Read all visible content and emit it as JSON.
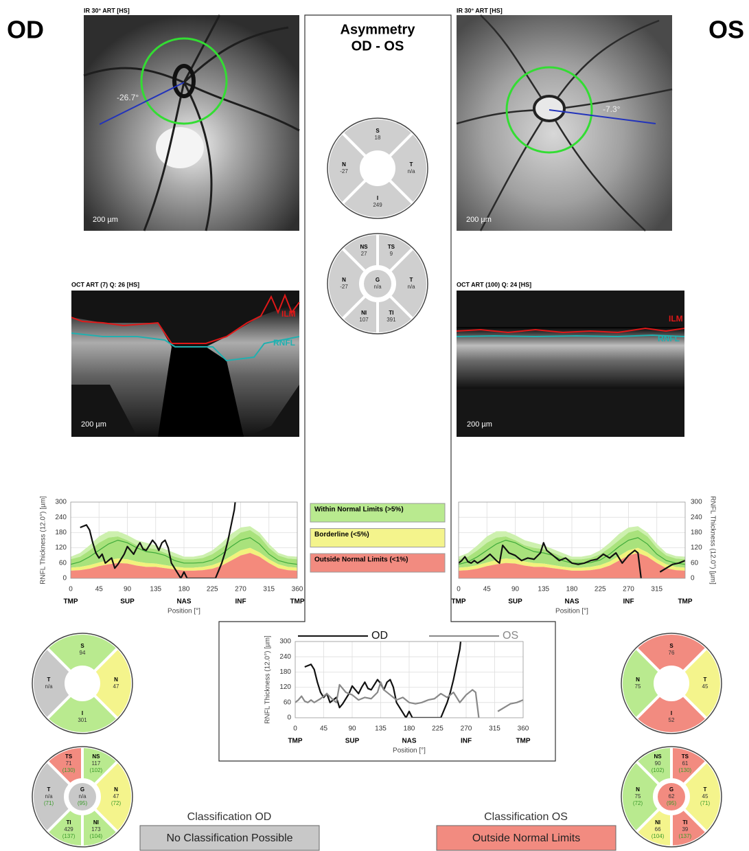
{
  "od_title": "OD",
  "os_title": "OS",
  "asymmetry": {
    "title": "Asymmetry",
    "subtitle": "OD - OS",
    "sectors4": [
      {
        "label": "S",
        "value": 18,
        "color": "#cfcfcf"
      },
      {
        "label": "T",
        "value": "n/a",
        "color": "#cfcfcf"
      },
      {
        "label": "I",
        "value": 249,
        "color": "#cfcfcf"
      },
      {
        "label": "N",
        "value": -27,
        "color": "#cfcfcf"
      }
    ],
    "sectors6": [
      {
        "label": "NS",
        "value": 27,
        "color": "#cfcfcf"
      },
      {
        "label": "TS",
        "value": 9,
        "color": "#cfcfcf"
      },
      {
        "label": "T",
        "value": "n/a",
        "color": "#cfcfcf"
      },
      {
        "label": "TI",
        "value": 391,
        "color": "#cfcfcf"
      },
      {
        "label": "NI",
        "value": 107,
        "color": "#cfcfcf"
      },
      {
        "label": "N",
        "value": -27,
        "color": "#cfcfcf"
      },
      {
        "label": "G",
        "value": "n/a",
        "color": "#cfcfcf"
      }
    ]
  },
  "od": {
    "ir": {
      "label": "IR 30° ART [HS]",
      "angle": "-26.7°",
      "scale": "200 µm"
    },
    "oct": {
      "label": "OCT ART (7) Q: 26 [HS]",
      "scale": "200 µm",
      "ilm": "ILM",
      "rnfl": "RNFL"
    },
    "sectors4": [
      {
        "label": "S",
        "value": 94,
        "color": "#b9ea8f"
      },
      {
        "label": "N",
        "value": 47,
        "color": "#f4f48c"
      },
      {
        "label": "I",
        "value": 301,
        "color": "#b9ea8f"
      },
      {
        "label": "T",
        "value": "n/a",
        "color": "#c8c8c8"
      }
    ],
    "sectors6": [
      {
        "label": "TS",
        "value": 71,
        "normal": "(130)",
        "color": "#f28b80"
      },
      {
        "label": "NS",
        "value": 117,
        "normal": "(102)",
        "color": "#b9ea8f"
      },
      {
        "label": "N",
        "value": 47,
        "normal": "(72)",
        "color": "#f4f48c"
      },
      {
        "label": "NI",
        "value": 173,
        "normal": "(104)",
        "color": "#b9ea8f"
      },
      {
        "label": "TI",
        "value": 429,
        "normal": "(137)",
        "color": "#b9ea8f"
      },
      {
        "label": "T",
        "value": "n/a",
        "normal": "(71)",
        "color": "#c8c8c8"
      },
      {
        "label": "G",
        "value": "n/a",
        "normal": "(95)",
        "color": "#c8c8c8"
      }
    ],
    "classification": {
      "title": "Classification OD",
      "result": "No Classification Possible",
      "color": "#c8c8c8"
    }
  },
  "os": {
    "ir": {
      "label": "IR 30° ART [HS]",
      "angle": "-7.3°",
      "scale": "200 µm"
    },
    "oct": {
      "label": "OCT ART (100) Q: 24 [HS]",
      "scale": "200 µm",
      "ilm": "ILM",
      "rnfl": "RNFL"
    },
    "sectors4": [
      {
        "label": "S",
        "value": 76,
        "color": "#f28b80"
      },
      {
        "label": "T",
        "value": 45,
        "color": "#f4f48c"
      },
      {
        "label": "I",
        "value": 52,
        "color": "#f28b80"
      },
      {
        "label": "N",
        "value": 75,
        "color": "#b9ea8f"
      }
    ],
    "sectors6": [
      {
        "label": "NS",
        "value": 90,
        "normal": "(102)",
        "color": "#b9ea8f"
      },
      {
        "label": "TS",
        "value": 61,
        "normal": "(130)",
        "color": "#f28b80"
      },
      {
        "label": "T",
        "value": 45,
        "normal": "(71)",
        "color": "#f4f48c"
      },
      {
        "label": "TI",
        "value": 39,
        "normal": "(137)",
        "color": "#f28b80"
      },
      {
        "label": "NI",
        "value": 66,
        "normal": "(104)",
        "color": "#f4f48c"
      },
      {
        "label": "N",
        "value": 75,
        "normal": "(72)",
        "color": "#b9ea8f"
      },
      {
        "label": "G",
        "value": 62,
        "normal": "(95)",
        "color": "#f28b80"
      }
    ],
    "classification": {
      "title": "Classification OS",
      "result": "Outside Normal Limits",
      "color": "#f28b80"
    }
  },
  "legend": [
    {
      "label": "Within Normal Limits (>5%)",
      "color": "#b9ea8f"
    },
    {
      "label": "Borderline (<5%)",
      "color": "#f4f48c"
    },
    {
      "label": "Outside Normal Limits (<1%)",
      "color": "#f28b80"
    }
  ],
  "charts": [
    {
      "type": "line",
      "ylabel": "RNFL Thickness (12.0°) [µm]",
      "xlabel": "Position [°]",
      "xlim": [
        0,
        360
      ],
      "ylim": [
        0,
        300
      ],
      "xticks": [
        0,
        45,
        90,
        135,
        180,
        225,
        270,
        315,
        360
      ],
      "yticks": [
        0,
        60,
        120,
        180,
        240,
        300
      ],
      "regions": [
        {
          "value": 0,
          "label": "TMP"
        },
        {
          "value": 90,
          "label": "SUP"
        },
        {
          "value": 180,
          "label": "NAS"
        },
        {
          "value": 270,
          "label": "INF"
        },
        {
          "value": 360,
          "label": "TMP"
        }
      ],
      "norm": {
        "colors": {
          "p1": "#f48a7c",
          "p5": "#f2f27c",
          "p95": "#a9e27c",
          "p99": "#cdf0ae",
          "mean": "#3faa3a"
        },
        "x": [
          0,
          15,
          30,
          45,
          60,
          75,
          90,
          105,
          120,
          135,
          150,
          165,
          180,
          195,
          210,
          225,
          240,
          255,
          270,
          285,
          300,
          315,
          330,
          345,
          360
        ],
        "p1": [
          30,
          32,
          38,
          48,
          55,
          60,
          58,
          50,
          45,
          45,
          40,
          35,
          30,
          30,
          32,
          38,
          50,
          70,
          90,
          100,
          85,
          60,
          40,
          32,
          30
        ],
        "p5": [
          42,
          45,
          52,
          62,
          72,
          78,
          75,
          66,
          60,
          58,
          52,
          46,
          42,
          42,
          45,
          52,
          66,
          88,
          110,
          120,
          102,
          75,
          55,
          45,
          42
        ],
        "p95": [
          75,
          85,
          110,
          140,
          160,
          165,
          150,
          130,
          120,
          115,
          100,
          85,
          75,
          75,
          80,
          95,
          120,
          150,
          180,
          190,
          165,
          120,
          90,
          78,
          75
        ],
        "p99": [
          85,
          100,
          130,
          165,
          185,
          185,
          170,
          150,
          140,
          130,
          115,
          100,
          85,
          85,
          92,
          110,
          140,
          175,
          200,
          205,
          180,
          135,
          100,
          88,
          85
        ],
        "mean": [
          55,
          65,
          85,
          110,
          135,
          150,
          140,
          120,
          105,
          100,
          90,
          70,
          60,
          60,
          62,
          72,
          95,
          125,
          150,
          160,
          135,
          95,
          70,
          60,
          55
        ]
      },
      "series": [
        {
          "color": "#111111",
          "x": [
            15,
            20,
            25,
            30,
            35,
            40,
            45,
            50,
            55,
            60,
            65,
            70,
            75,
            80,
            85,
            90,
            95,
            100,
            105,
            110,
            115,
            120,
            125,
            130,
            135,
            140,
            145,
            150,
            155,
            160,
            165,
            170,
            175,
            180,
            185,
            190,
            200,
            210,
            220,
            225,
            230,
            235,
            240,
            245,
            250,
            255,
            260,
            264
          ],
          "values": [
            200,
            205,
            210,
            190,
            140,
            100,
            80,
            95,
            60,
            70,
            80,
            40,
            55,
            75,
            95,
            125,
            110,
            95,
            120,
            140,
            115,
            110,
            130,
            150,
            135,
            110,
            140,
            150,
            120,
            60,
            40,
            20,
            0,
            25,
            0,
            0,
            0,
            0,
            0,
            0,
            0,
            30,
            60,
            100,
            150,
            210,
            270,
            360
          ]
        }
      ]
    },
    {
      "type": "line",
      "ylabel": "RNFL Thickness (12.0°) [µm]",
      "xlabel": "Position [°]",
      "axis_side": "right",
      "xlim": [
        0,
        360
      ],
      "ylim": [
        0,
        300
      ],
      "xticks": [
        0,
        45,
        90,
        135,
        180,
        225,
        270,
        315
      ],
      "yticks": [
        0,
        60,
        120,
        180,
        240,
        300
      ],
      "regions": [
        {
          "value": 0,
          "label": "TMP"
        },
        {
          "value": 90,
          "label": "SUP"
        },
        {
          "value": 180,
          "label": "NAS"
        },
        {
          "value": 270,
          "label": "INF"
        },
        {
          "value": 360,
          "label": "TMP"
        }
      ],
      "norm": {
        "colors": {
          "p1": "#f48a7c",
          "p5": "#f2f27c",
          "p95": "#a9e27c",
          "p99": "#cdf0ae",
          "mean": "#3faa3a"
        },
        "x": [
          0,
          15,
          30,
          45,
          60,
          75,
          90,
          105,
          120,
          135,
          150,
          165,
          180,
          195,
          210,
          225,
          240,
          255,
          270,
          285,
          300,
          315,
          330,
          345,
          360
        ],
        "p1": [
          30,
          32,
          38,
          48,
          55,
          60,
          58,
          50,
          45,
          45,
          40,
          35,
          30,
          30,
          32,
          38,
          50,
          70,
          90,
          100,
          85,
          60,
          40,
          32,
          30
        ],
        "p5": [
          42,
          45,
          52,
          62,
          72,
          78,
          75,
          66,
          60,
          58,
          52,
          46,
          42,
          42,
          45,
          52,
          66,
          88,
          110,
          120,
          102,
          75,
          55,
          45,
          42
        ],
        "p95": [
          75,
          85,
          110,
          140,
          160,
          165,
          150,
          130,
          120,
          115,
          100,
          85,
          75,
          75,
          80,
          95,
          120,
          150,
          180,
          190,
          165,
          120,
          90,
          78,
          75
        ],
        "p99": [
          85,
          100,
          130,
          165,
          185,
          185,
          170,
          150,
          140,
          130,
          115,
          100,
          85,
          85,
          92,
          110,
          140,
          175,
          200,
          205,
          180,
          135,
          100,
          88,
          85
        ],
        "mean": [
          55,
          65,
          85,
          110,
          135,
          150,
          140,
          120,
          105,
          100,
          90,
          70,
          60,
          60,
          62,
          72,
          95,
          125,
          150,
          160,
          135,
          95,
          70,
          60,
          55
        ]
      },
      "series": [
        {
          "color": "#111111",
          "x": [
            0,
            5,
            10,
            15,
            20,
            25,
            30,
            40,
            50,
            60,
            65,
            70,
            80,
            90,
            100,
            110,
            120,
            130,
            135,
            140,
            150,
            160,
            170,
            180,
            190,
            200,
            210,
            220,
            230,
            240,
            250,
            260,
            270,
            280,
            285,
            290,
            300,
            320,
            330,
            340,
            350,
            360
          ],
          "values": [
            60,
            70,
            85,
            65,
            60,
            70,
            60,
            75,
            95,
            70,
            60,
            130,
            100,
            90,
            70,
            80,
            75,
            100,
            140,
            110,
            90,
            70,
            80,
            60,
            55,
            60,
            70,
            75,
            95,
            80,
            100,
            60,
            90,
            110,
            100,
            0,
            null,
            25,
            40,
            55,
            60,
            70
          ]
        }
      ]
    },
    {
      "type": "line",
      "ylabel": "RNFL Thickness (12.0°) [µm]",
      "xlabel": "Position [°]",
      "xlim": [
        0,
        360
      ],
      "ylim": [
        0,
        300
      ],
      "xticks": [
        0,
        45,
        90,
        135,
        180,
        225,
        270,
        315,
        360
      ],
      "yticks": [
        0,
        60,
        120,
        180,
        240,
        300
      ],
      "regions": [
        {
          "value": 0,
          "label": "TMP"
        },
        {
          "value": 90,
          "label": "SUP"
        },
        {
          "value": 180,
          "label": "NAS"
        },
        {
          "value": 270,
          "label": "INF"
        },
        {
          "value": 360,
          "label": "TMP"
        }
      ],
      "series": [
        {
          "name": "OD",
          "color": "#111111",
          "x": [
            15,
            20,
            25,
            30,
            35,
            40,
            45,
            50,
            55,
            60,
            65,
            70,
            75,
            80,
            85,
            90,
            95,
            100,
            105,
            110,
            115,
            120,
            125,
            130,
            135,
            140,
            145,
            150,
            155,
            160,
            165,
            170,
            175,
            180,
            185,
            190,
            200,
            210,
            220,
            225,
            230,
            235,
            240,
            245,
            250,
            255,
            260,
            264
          ],
          "values": [
            200,
            205,
            210,
            190,
            140,
            100,
            80,
            95,
            60,
            70,
            80,
            40,
            55,
            75,
            95,
            125,
            110,
            95,
            120,
            140,
            115,
            110,
            130,
            150,
            135,
            110,
            140,
            150,
            120,
            60,
            40,
            20,
            0,
            25,
            0,
            0,
            0,
            0,
            0,
            0,
            0,
            30,
            60,
            100,
            150,
            210,
            270,
            360
          ]
        },
        {
          "name": "OS",
          "color": "#888888",
          "x": [
            0,
            5,
            10,
            15,
            20,
            25,
            30,
            40,
            50,
            60,
            65,
            70,
            80,
            90,
            100,
            110,
            120,
            130,
            135,
            140,
            150,
            160,
            170,
            180,
            190,
            200,
            210,
            220,
            230,
            240,
            250,
            260,
            270,
            280,
            285,
            290,
            300,
            320,
            330,
            340,
            350,
            360
          ],
          "values": [
            60,
            70,
            85,
            65,
            60,
            70,
            60,
            75,
            95,
            70,
            60,
            130,
            100,
            90,
            70,
            80,
            75,
            100,
            140,
            110,
            90,
            70,
            80,
            60,
            55,
            60,
            70,
            75,
            95,
            80,
            100,
            60,
            90,
            110,
            100,
            0,
            null,
            25,
            40,
            55,
            60,
            70
          ]
        }
      ]
    }
  ]
}
